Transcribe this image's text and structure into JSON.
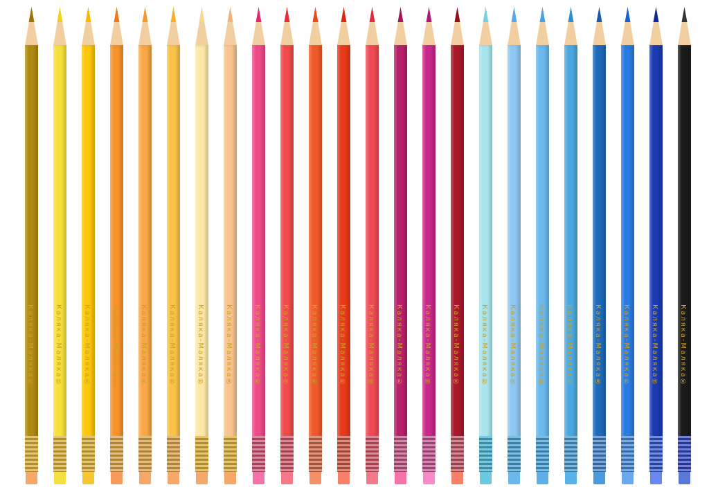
{
  "brand_text": "Каляка-Маляка®",
  "pencils": [
    {
      "body": "#b08a10",
      "lead": "#9a7408",
      "ferrule": "#d4a62a",
      "eraser": "#f6a868"
    },
    {
      "body": "#f7e03a",
      "lead": "#f2d21a",
      "ferrule": "#d4a62a",
      "eraser": "#f6e040"
    },
    {
      "body": "#fcc60a",
      "lead": "#f8b800",
      "ferrule": "#d4a62a",
      "eraser": "#f6c830"
    },
    {
      "body": "#f7922a",
      "lead": "#f07a18",
      "ferrule": "#d49a3a",
      "eraser": "#f69a5a"
    },
    {
      "body": "#f9a845",
      "lead": "#f59a30",
      "ferrule": "#d49a3a",
      "eraser": "#f6a868"
    },
    {
      "body": "#fbc24a",
      "lead": "#f7b030",
      "ferrule": "#d49a3a",
      "eraser": "#f6a868"
    },
    {
      "body": "#fde8a8",
      "lead": "#f8d890",
      "ferrule": "#d4a62a",
      "eraser": "#f6a868"
    },
    {
      "body": "#f9c48e",
      "lead": "#f5b07a",
      "ferrule": "#d4a62a",
      "eraser": "#f6a868"
    },
    {
      "body": "#ee4a8a",
      "lead": "#e02a70",
      "ferrule": "#c84a6a",
      "eraser": "#f472a8"
    },
    {
      "body": "#f04a4a",
      "lead": "#e82a3a",
      "ferrule": "#c84a5a",
      "eraser": "#f47a8a"
    },
    {
      "body": "#f05a28",
      "lead": "#e84a18",
      "ferrule": "#c8603a",
      "eraser": "#f6906a"
    },
    {
      "body": "#e83a1a",
      "lead": "#d82a10",
      "ferrule": "#c8503a",
      "eraser": "#f6806a"
    },
    {
      "body": "#ee4a55",
      "lead": "#e02a40",
      "ferrule": "#c84a5a",
      "eraser": "#f47a8a"
    },
    {
      "body": "#b8206a",
      "lead": "#a01858",
      "ferrule": "#b84a7a",
      "eraser": "#f472a8"
    },
    {
      "body": "#c8288a",
      "lead": "#b01878",
      "ferrule": "#b84a8a",
      "eraser": "#f48ac8"
    },
    {
      "body": "#a8182a",
      "lead": "#901020",
      "ferrule": "#b84a5a",
      "eraser": "#f6806a"
    },
    {
      "body": "#a8e4ec",
      "lead": "#78d0e0",
      "ferrule": "#3aa8c8",
      "eraser": "#6ac8e0"
    },
    {
      "body": "#8ec8f0",
      "lead": "#5aa8e8",
      "ferrule": "#3a98d0",
      "eraser": "#6ab8ec"
    },
    {
      "body": "#6ab8ec",
      "lead": "#4aa0e0",
      "ferrule": "#3a98d0",
      "eraser": "#5ab0e8"
    },
    {
      "body": "#4aa8e0",
      "lead": "#2a90d0",
      "ferrule": "#3a90c8",
      "eraser": "#5ab0e8"
    },
    {
      "body": "#1e6ab8",
      "lead": "#1a58a8",
      "ferrule": "#3a78c0",
      "eraser": "#4a9ae0"
    },
    {
      "body": "#2a7ae0",
      "lead": "#1a60d0",
      "ferrule": "#3a80d0",
      "eraser": "#6aa8f0"
    },
    {
      "body": "#1a3ab0",
      "lead": "#10289a",
      "ferrule": "#2a50c8",
      "eraser": "#6a88f0"
    },
    {
      "body": "#1a1a1a",
      "lead": "#333333",
      "ferrule": "#2a40b8",
      "eraser": "#5a78d8"
    }
  ]
}
